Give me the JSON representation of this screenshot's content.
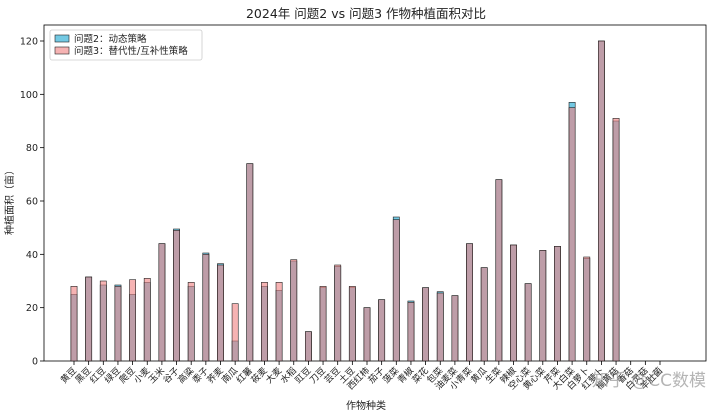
{
  "chart_data": {
    "type": "bar",
    "title": "2024年 问题2 vs 问题3 作物种植面积对比",
    "xlabel": "作物种类",
    "ylabel": "种植面积（亩）",
    "ylim": [
      0,
      126
    ],
    "yticks": [
      0,
      20,
      40,
      60,
      80,
      100,
      120
    ],
    "grid": false,
    "legend_position": "top-left",
    "categories": [
      "黄豆",
      "黑豆",
      "红豆",
      "绿豆",
      "爬豆",
      "小麦",
      "玉米",
      "谷子",
      "高粱",
      "黍子",
      "荞麦",
      "南瓜",
      "红薯",
      "莜麦",
      "大麦",
      "水稻",
      "豇豆",
      "刀豆",
      "芸豆",
      "土豆",
      "西红柿",
      "茄子",
      "菠菜",
      "青椒",
      "菜花",
      "包菜",
      "油麦菜",
      "小青菜",
      "黄瓜",
      "生菜",
      "辣椒",
      "空心菜",
      "黄心菜",
      "芹菜",
      "大白菜",
      "白萝卜",
      "红萝卜",
      "榆黄菇",
      "香菇",
      "白灵菇",
      "羊肚菌"
    ],
    "series": [
      {
        "name": "问题2：动态策略",
        "color": "#5bc0de",
        "values": [
          25,
          31.5,
          28.5,
          28.5,
          25,
          29.5,
          44,
          49.5,
          28,
          40.5,
          36.5,
          7.5,
          74,
          28,
          26.5,
          37.5,
          11,
          27.5,
          35.5,
          27.5,
          20,
          23,
          54,
          22.5,
          27.5,
          26,
          24.5,
          44,
          35,
          68,
          43.5,
          29,
          41.5,
          43,
          97,
          38.5,
          120,
          90,
          0,
          0,
          0
        ]
      },
      {
        "name": "问题3：替代性/互补性策略",
        "color": "#f08080",
        "values": [
          28,
          31.5,
          30,
          28,
          30.5,
          31,
          44,
          49,
          29.5,
          40,
          36,
          21.5,
          74,
          29.5,
          29.5,
          38,
          11,
          28,
          36,
          28,
          20,
          23,
          53,
          22,
          27.5,
          25.5,
          24.5,
          44,
          35,
          68,
          43.5,
          29,
          41.5,
          43,
          95,
          39,
          120,
          91,
          0,
          0,
          0
        ]
      }
    ]
  },
  "watermark": "知乎 @CC数模"
}
